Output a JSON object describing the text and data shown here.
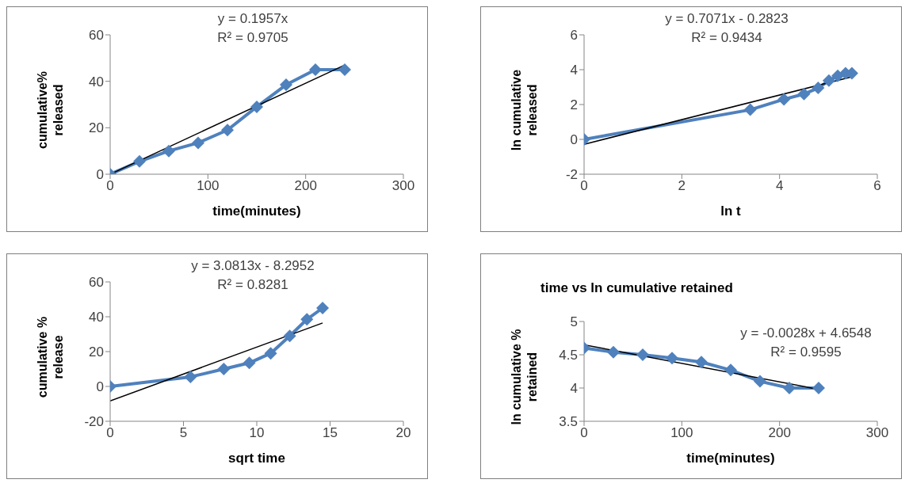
{
  "chart_data": [
    {
      "type": "line",
      "xlabel": "time(minutes)",
      "ylabel": "cumulative% released",
      "xlim": [
        0,
        300
      ],
      "xticks": [
        0,
        100,
        200,
        300
      ],
      "ylim": [
        0,
        60
      ],
      "yticks": [
        0,
        20,
        40,
        60
      ],
      "marker": "diamond",
      "annotations": [
        "y = 0.1957x",
        "R² = 0.9705"
      ],
      "series": [
        {
          "color": "#4f81bd",
          "x": [
            0,
            30,
            60,
            90,
            120,
            150,
            180,
            210,
            240
          ],
          "values": [
            0,
            5.5,
            10,
            13.5,
            19,
            29,
            38.5,
            45,
            45
          ]
        },
        {
          "type": "line",
          "color": "#000000",
          "marker": "none",
          "x": [
            0,
            240
          ],
          "values": [
            0,
            47
          ]
        }
      ]
    },
    {
      "type": "line",
      "xlabel": "ln t",
      "ylabel": "ln cumulative released",
      "xlim": [
        0,
        6
      ],
      "xticks": [
        0,
        2,
        4,
        6
      ],
      "ylim": [
        -2,
        6
      ],
      "yticks": [
        -2,
        0,
        2,
        4,
        6
      ],
      "marker": "diamond",
      "annotations": [
        "y = 0.7071x - 0.2823",
        "R² = 0.9434"
      ],
      "series": [
        {
          "color": "#4f81bd",
          "x": [
            0,
            3.4,
            4.09,
            4.5,
            4.79,
            5.01,
            5.19,
            5.35,
            5.48
          ],
          "values": [
            0,
            1.7,
            2.3,
            2.6,
            2.95,
            3.37,
            3.65,
            3.8,
            3.8
          ]
        },
        {
          "type": "line",
          "color": "#000000",
          "marker": "none",
          "x": [
            0,
            5.48
          ],
          "values": [
            -0.28,
            3.59
          ]
        }
      ]
    },
    {
      "type": "line",
      "xlabel": "sqrt time",
      "ylabel": "cumulative % release",
      "xlim": [
        0,
        20
      ],
      "xticks": [
        0,
        5,
        10,
        15,
        20
      ],
      "ylim": [
        -20,
        60
      ],
      "yticks": [
        -20,
        0,
        20,
        40,
        60
      ],
      "marker": "diamond",
      "annotations": [
        "y = 3.0813x - 8.2952",
        "R² = 0.8281"
      ],
      "series": [
        {
          "color": "#4f81bd",
          "x": [
            0,
            5.48,
            7.75,
            9.49,
            10.95,
            12.25,
            13.42,
            14.49
          ],
          "values": [
            0,
            5.5,
            10,
            13.5,
            19,
            29,
            38.5,
            45
          ]
        },
        {
          "type": "line",
          "color": "#000000",
          "marker": "none",
          "x": [
            0,
            14.49
          ],
          "values": [
            -8.3,
            36.4
          ]
        }
      ]
    },
    {
      "type": "line",
      "title": "time vs ln cumulative retained",
      "xlabel": "time(minutes)",
      "ylabel": "ln cumulative % retained",
      "xlim": [
        0,
        300
      ],
      "xticks": [
        0,
        100,
        200,
        300
      ],
      "ylim": [
        3.5,
        5
      ],
      "yticks": [
        3.5,
        4,
        4.5,
        5
      ],
      "marker": "diamond",
      "annotations": [
        "y = -0.0028x + 4.6548",
        "R² = 0.9595"
      ],
      "series": [
        {
          "color": "#4f81bd",
          "x": [
            0,
            30,
            60,
            90,
            120,
            150,
            180,
            210,
            240
          ],
          "values": [
            4.6,
            4.54,
            4.5,
            4.45,
            4.39,
            4.27,
            4.1,
            4.0,
            4.0
          ]
        },
        {
          "type": "line",
          "color": "#000000",
          "marker": "none",
          "x": [
            0,
            240
          ],
          "values": [
            4.65,
            3.98
          ]
        }
      ]
    }
  ]
}
